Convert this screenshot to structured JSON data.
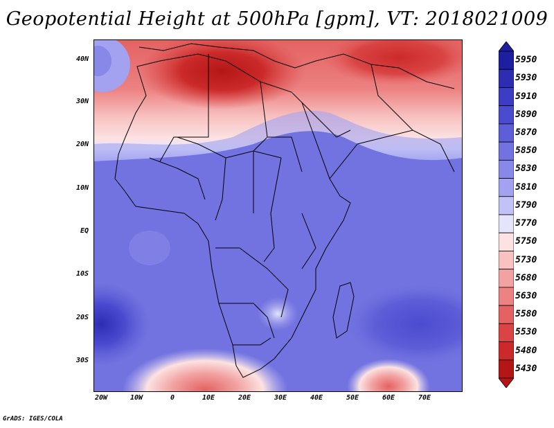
{
  "title": "Geopotential Height at 500hPa [gpm], VT: 2018021009",
  "credit": "GrADS: IGES/COLA",
  "map": {
    "lat_labels": [
      "40N",
      "30N",
      "20N",
      "10N",
      "EQ",
      "10S",
      "20S",
      "30S"
    ],
    "lon_labels": [
      "20W",
      "10W",
      "0",
      "10E",
      "20E",
      "30E",
      "40E",
      "50E",
      "60E",
      "70E"
    ],
    "lat_range": [
      -36,
      45
    ],
    "lon_range": [
      -22,
      80
    ]
  },
  "legend": {
    "levels": [
      "5950",
      "5930",
      "5910",
      "5890",
      "5870",
      "5850",
      "5830",
      "5810",
      "5790",
      "5770",
      "5750",
      "5730",
      "5680",
      "5630",
      "5580",
      "5530",
      "5480",
      "5430"
    ],
    "colors": [
      "#1e1ea0",
      "#2d2db4",
      "#3c3cc4",
      "#4b4bd0",
      "#5e5ed8",
      "#7272e0",
      "#8888e8",
      "#a2a2f0",
      "#c2c2f6",
      "#e4e4fb",
      "#fce2e2",
      "#f8c2c2",
      "#f2a2a2",
      "#ec8282",
      "#e46262",
      "#da4444",
      "#cc2a2a",
      "#b41616"
    ]
  }
}
